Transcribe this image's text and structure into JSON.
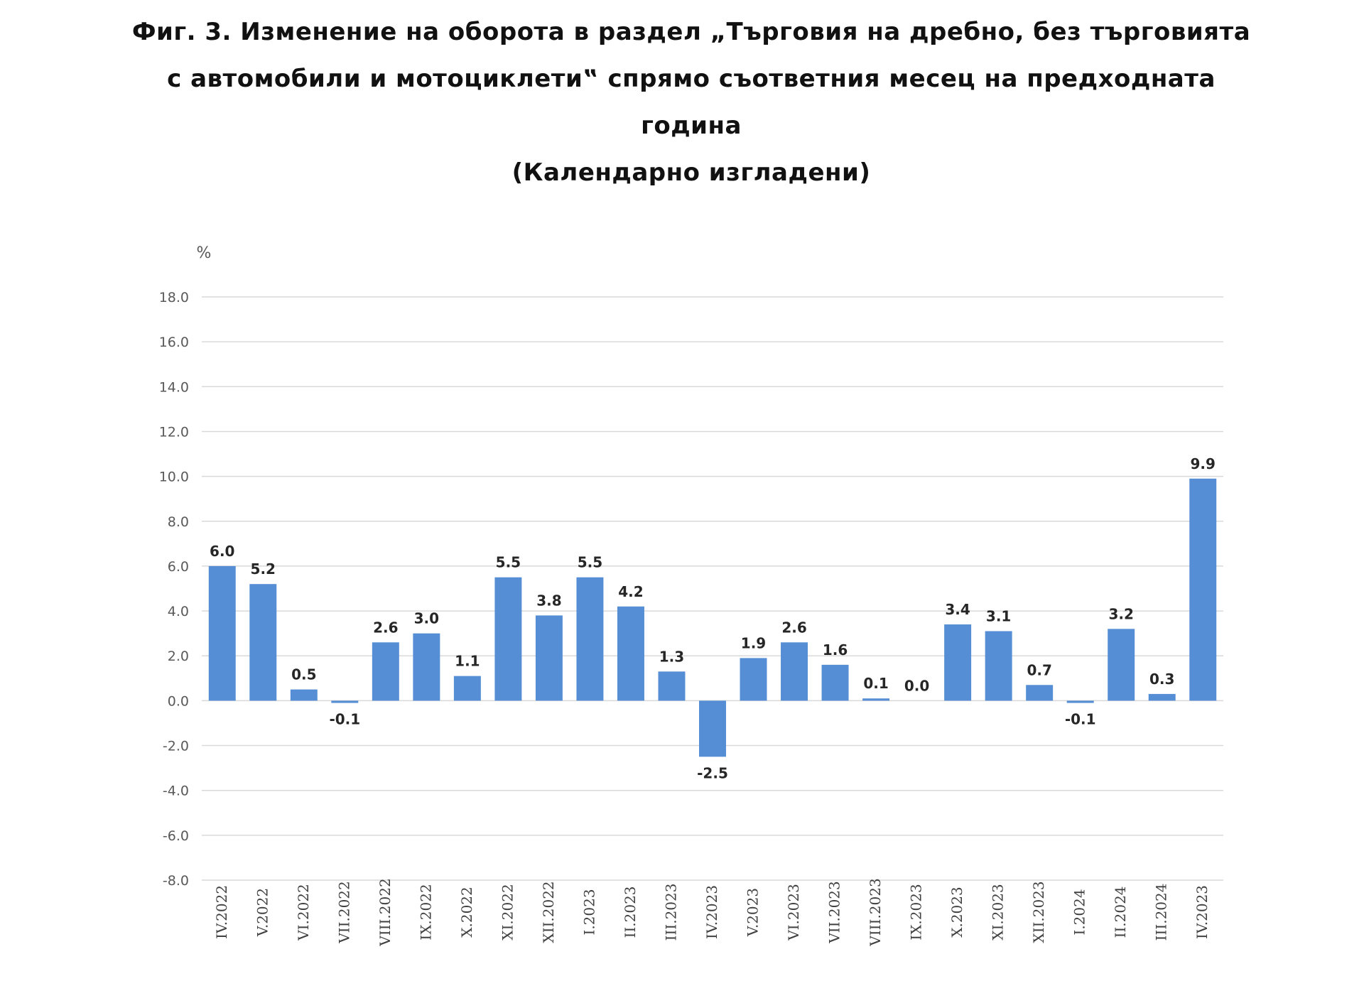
{
  "title_lines": [
    "Фиг. 3. Изменение на оборота в раздел „Търговия на дребно, без търговията",
    "с автомобили и мотоциклети‟ спрямо съответния месец на предходната",
    "година",
    "(Календарно изгладени)"
  ],
  "chart_data": {
    "type": "bar",
    "title": "Фиг. 3. Изменение на оборота в раздел „Търговия на дребно, без търговията с автомобили и мотоциклети‟ спрямо съответния месец на предходната година (Календарно изгладени)",
    "ylabel": "%",
    "xlabel": "",
    "ylim": [
      -8,
      18
    ],
    "yticks": [
      "18.0",
      "16.0",
      "14.0",
      "12.0",
      "10.0",
      "8.0",
      "6.0",
      "4.0",
      "2.0",
      "0.0",
      "-2.0",
      "-4.0",
      "-6.0",
      "-8.0"
    ],
    "grid": true,
    "bar_color": "#558ed5",
    "categories": [
      "IV.2022",
      "V.2022",
      "VI.2022",
      "VII.2022",
      "VIII.2022",
      "IX.2022",
      "X.2022",
      "XI.2022",
      "XII.2022",
      "I.2023",
      "II.2023",
      "III.2023",
      "IV.2023",
      "V.2023",
      "VI.2023",
      "VII.2023",
      "VIII.2023",
      "IX.2023",
      "X.2023",
      "XI.2023",
      "XII.2023",
      "I.2024",
      "II.2024",
      "III.2024",
      "IV.2023"
    ],
    "values": [
      6.0,
      5.2,
      0.5,
      -0.1,
      2.6,
      3.0,
      1.1,
      5.5,
      3.8,
      5.5,
      4.2,
      1.3,
      -2.5,
      1.9,
      2.6,
      1.6,
      0.1,
      0.0,
      3.4,
      3.1,
      0.7,
      -0.1,
      3.2,
      0.3,
      9.9
    ],
    "value_labels": [
      "6.0",
      "5.2",
      "0.5",
      "-0.1",
      "2.6",
      "3.0",
      "1.1",
      "5.5",
      "3.8",
      "5.5",
      "4.2",
      "1.3",
      "-2.5",
      "1.9",
      "2.6",
      "1.6",
      "0.1",
      "0.0",
      "3.4",
      "3.1",
      "0.7",
      "-0.1",
      "3.2",
      "0.3",
      "9.9"
    ]
  }
}
